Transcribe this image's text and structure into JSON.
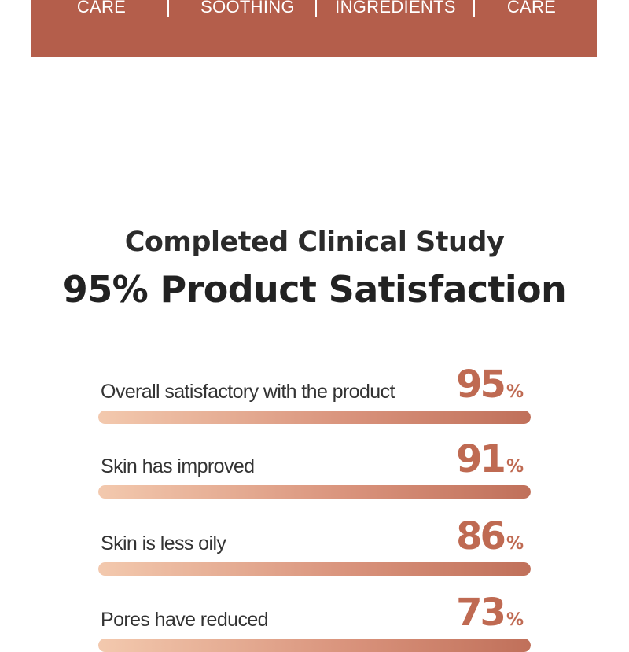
{
  "banner": {
    "background": "#b45e4b",
    "items": [
      {
        "label": "CARE"
      },
      {
        "label": "SOOTHING"
      },
      {
        "label": "INGREDIENTS"
      },
      {
        "label": "CARE"
      }
    ]
  },
  "heading": {
    "line1": "Completed Clinical Study",
    "line2": "95% Product Satisfaction"
  },
  "stats": [
    {
      "label": "Overall satisfactory with the product",
      "value": "95",
      "unit": "%"
    },
    {
      "label": "Skin has improved",
      "value": "91",
      "unit": "%"
    },
    {
      "label": "Skin is less oily",
      "value": "86",
      "unit": "%"
    },
    {
      "label": "Pores have reduced",
      "value": "73",
      "unit": "%"
    }
  ],
  "colors": {
    "accent": "#bf6a52",
    "bar_start": "#f3c9ae",
    "bar_end": "#c0705a",
    "heading_text": "#2b2b2b"
  }
}
